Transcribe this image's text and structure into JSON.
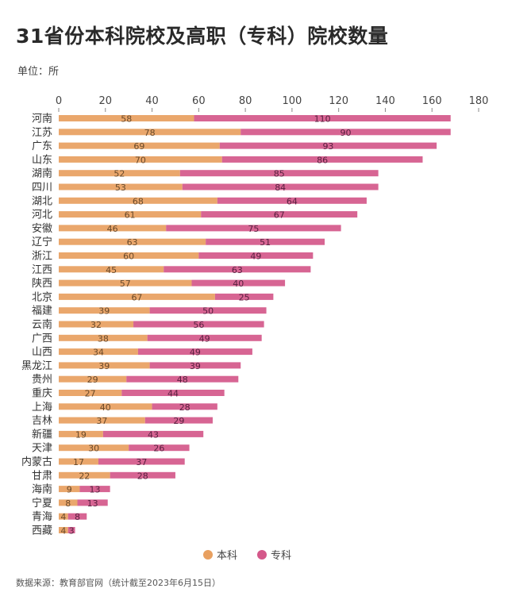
{
  "chart_data": {
    "type": "bar",
    "stacked": true,
    "orientation": "horizontal",
    "title": "31省份本科院校及高职（专科）院校数量",
    "unit_label": "单位：所",
    "xlim": [
      0,
      180
    ],
    "xticks": [
      0,
      20,
      40,
      60,
      80,
      100,
      120,
      140,
      160,
      180
    ],
    "grid": false,
    "legend_position": "bottom-center",
    "categories": [
      "河南",
      "江苏",
      "广东",
      "山东",
      "湖南",
      "四川",
      "湖北",
      "河北",
      "安徽",
      "辽宁",
      "浙江",
      "江西",
      "陕西",
      "北京",
      "福建",
      "云南",
      "广西",
      "山西",
      "黑龙江",
      "贵州",
      "重庆",
      "上海",
      "吉林",
      "新疆",
      "天津",
      "内蒙古",
      "甘肃",
      "海南",
      "宁夏",
      "青海",
      "西藏"
    ],
    "series": [
      {
        "name": "本科",
        "color": "#e8a060",
        "values": [
          58,
          78,
          69,
          70,
          52,
          53,
          68,
          61,
          46,
          63,
          60,
          45,
          57,
          67,
          39,
          32,
          38,
          34,
          39,
          29,
          27,
          40,
          37,
          19,
          30,
          17,
          22,
          9,
          8,
          4,
          4
        ]
      },
      {
        "name": "专科",
        "color": "#d4588a",
        "values": [
          110,
          90,
          93,
          86,
          85,
          84,
          64,
          67,
          75,
          51,
          49,
          63,
          40,
          25,
          50,
          56,
          49,
          49,
          39,
          48,
          44,
          28,
          29,
          43,
          26,
          37,
          28,
          13,
          13,
          8,
          3
        ]
      }
    ],
    "source": "数据来源：教育部官网（统计截至2023年6月15日）"
  }
}
